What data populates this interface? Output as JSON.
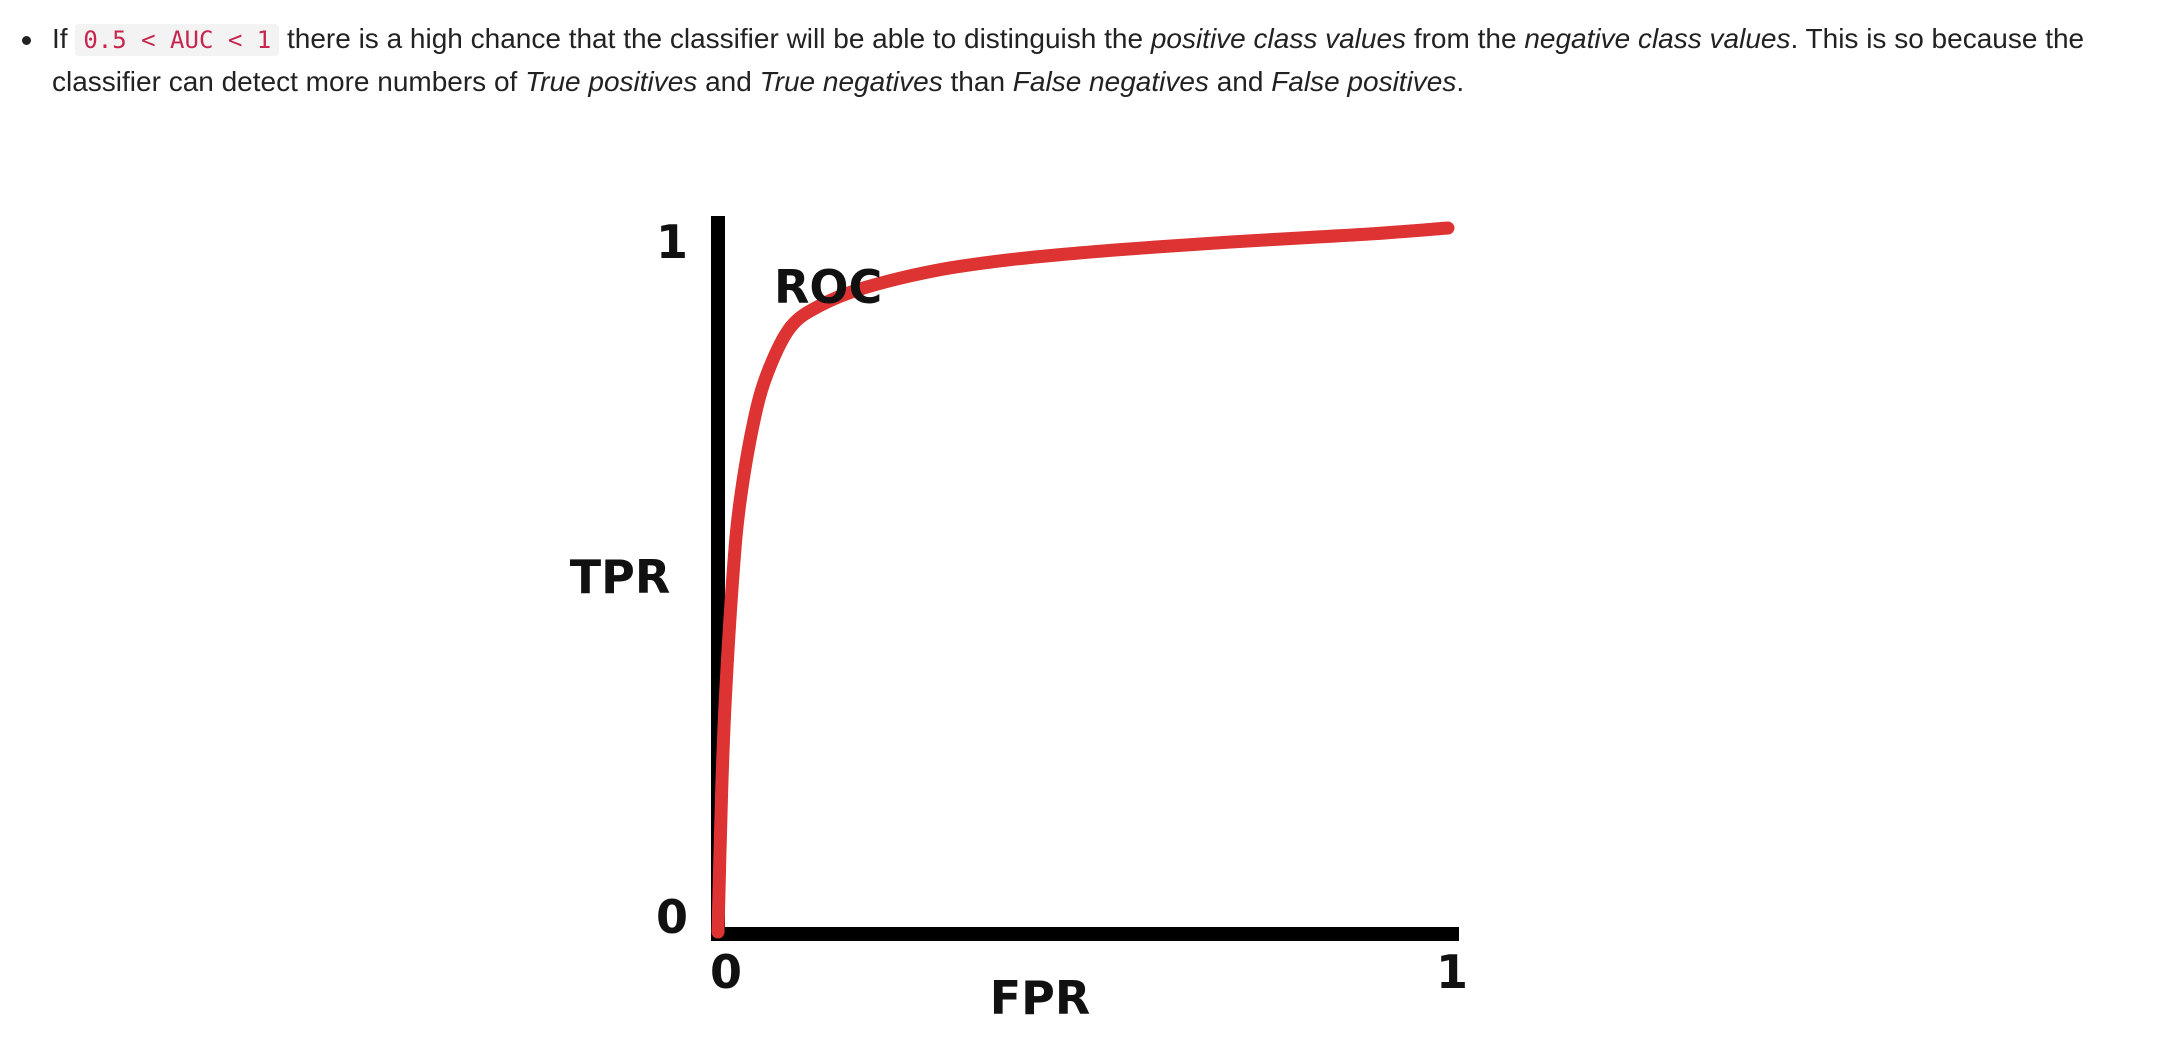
{
  "paragraph": {
    "prefix": "If",
    "code": "0.5 < AUC < 1",
    "text_1": "there is a high chance that the classifier will be able to distinguish the",
    "em_1": "positive class values",
    "text_2": "from the",
    "em_2": "negative class values",
    "text_3": ". This is so because the classifier can detect more numbers of",
    "em_3": "True positives",
    "text_4": "and",
    "em_4": "True negatives",
    "text_5": "than",
    "em_5": "False negatives",
    "text_6": "and",
    "em_6": "False positives",
    "suffix": "."
  },
  "chart_data": {
    "type": "line",
    "title": "",
    "curve_label": "ROC",
    "xlabel": "FPR",
    "ylabel": "TPR",
    "xlim": [
      0,
      1
    ],
    "ylim": [
      0,
      1
    ],
    "x_ticks": [
      "0",
      "1"
    ],
    "y_ticks": [
      "0",
      "1"
    ],
    "grid": false,
    "series": [
      {
        "name": "ROC",
        "color": "#dd3333",
        "x": [
          0,
          0.005,
          0.01,
          0.02,
          0.03,
          0.05,
          0.07,
          0.1,
          0.14,
          0.2,
          0.3,
          0.4,
          0.5,
          0.6,
          0.7,
          0.8,
          0.9,
          1.0
        ],
        "y": [
          0,
          0.2,
          0.33,
          0.5,
          0.61,
          0.73,
          0.8,
          0.86,
          0.89,
          0.915,
          0.94,
          0.955,
          0.965,
          0.973,
          0.98,
          0.986,
          0.992,
          1.0
        ]
      }
    ]
  }
}
